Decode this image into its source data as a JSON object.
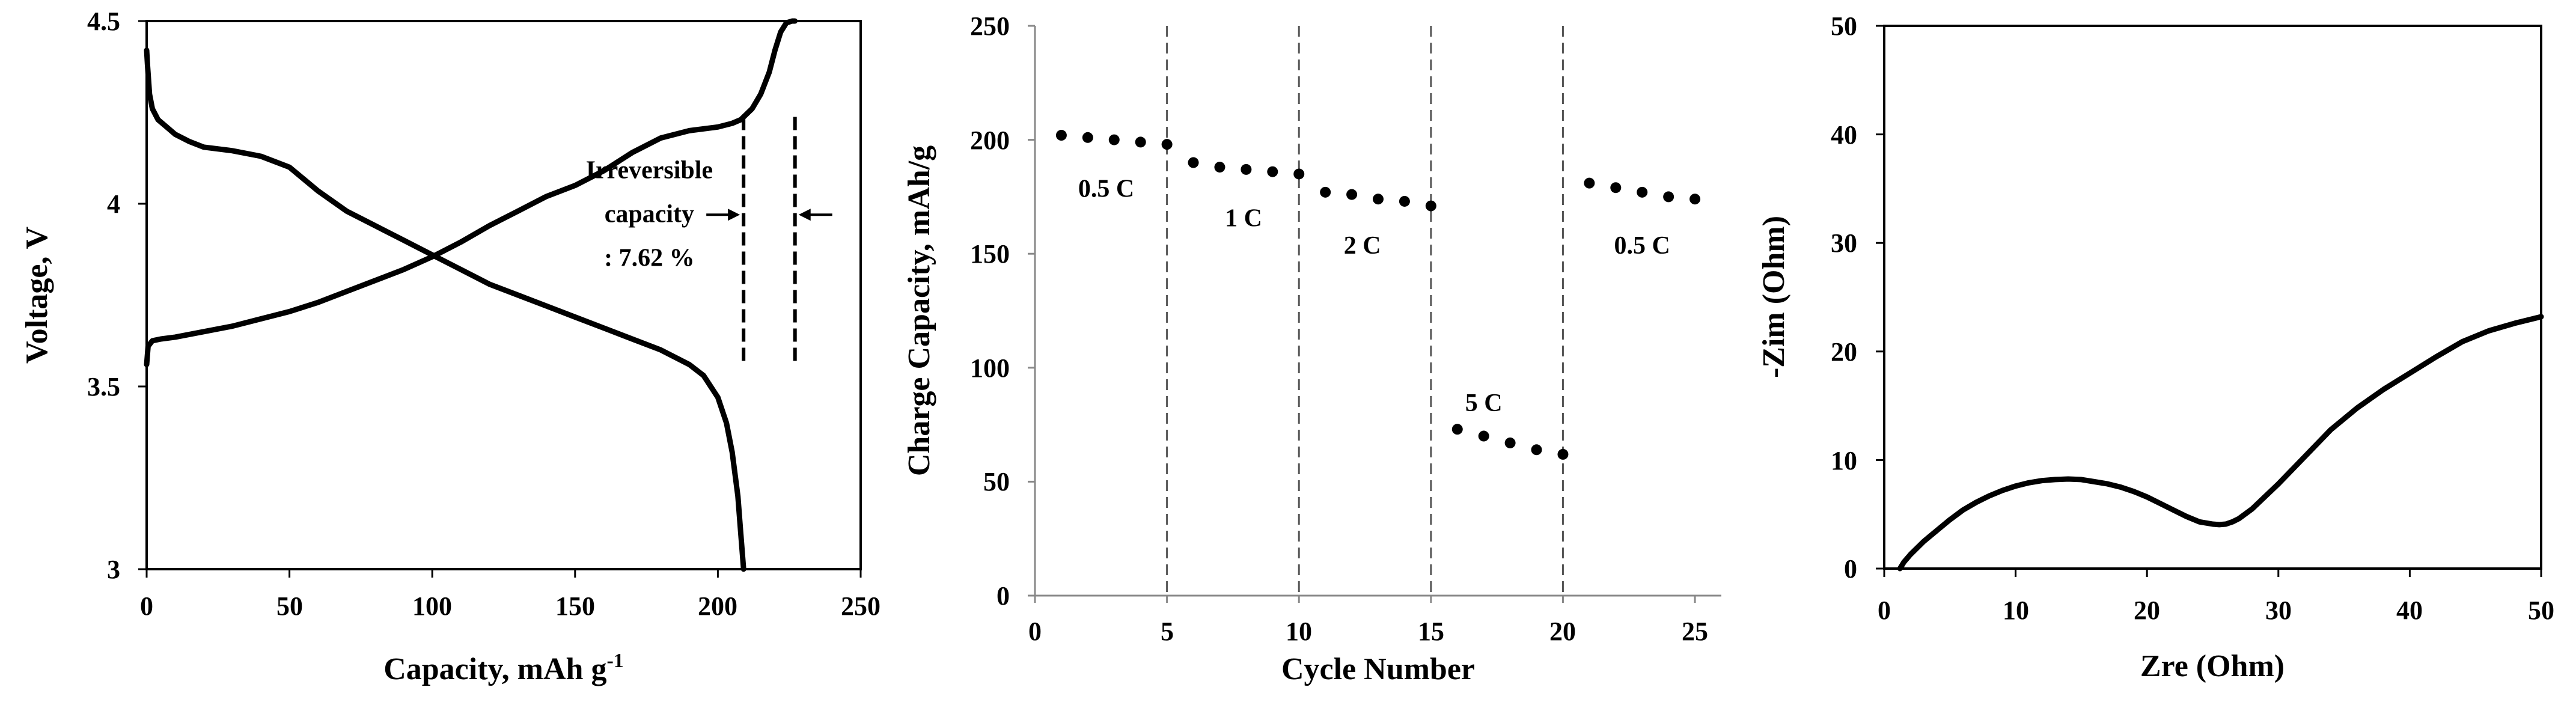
{
  "chart_data": [
    {
      "type": "line",
      "xlabel": "Capacity, mAh g",
      "xlabel_sup": "-1",
      "ylabel": "Voltage, V",
      "xlim": [
        0,
        250
      ],
      "ylim": [
        3,
        4.5
      ],
      "xticks": [
        "0",
        "50",
        "100",
        "150",
        "200",
        "250"
      ],
      "yticks": [
        "3",
        "3.5",
        "4",
        "4.5"
      ],
      "grid": false,
      "series": [
        {
          "x": [
            0,
            0.3,
            1,
            2,
            4,
            7,
            10,
            15,
            20,
            30,
            40,
            50,
            60,
            70,
            80,
            90,
            100,
            110,
            120,
            130,
            140,
            150,
            160,
            170,
            180,
            190,
            195,
            200,
            203,
            205,
            207,
            208,
            209
          ],
          "y": [
            4.42,
            4.38,
            4.3,
            4.26,
            4.23,
            4.21,
            4.19,
            4.17,
            4.155,
            4.145,
            4.13,
            4.1,
            4.035,
            3.98,
            3.94,
            3.9,
            3.86,
            3.82,
            3.78,
            3.75,
            3.72,
            3.69,
            3.66,
            3.63,
            3.6,
            3.56,
            3.53,
            3.47,
            3.4,
            3.32,
            3.2,
            3.1,
            3.0
          ]
        },
        {
          "x": [
            0,
            0.5,
            2,
            5,
            10,
            20,
            30,
            40,
            50,
            60,
            70,
            80,
            90,
            100,
            110,
            120,
            130,
            140,
            150,
            160,
            170,
            180,
            190,
            200,
            205,
            208,
            212,
            215,
            218,
            220,
            222,
            224,
            226,
            227
          ],
          "y": [
            3.56,
            3.61,
            3.625,
            3.63,
            3.635,
            3.65,
            3.665,
            3.685,
            3.705,
            3.73,
            3.76,
            3.79,
            3.82,
            3.855,
            3.895,
            3.94,
            3.98,
            4.02,
            4.05,
            4.09,
            4.14,
            4.18,
            4.2,
            4.21,
            4.22,
            4.23,
            4.26,
            4.3,
            4.36,
            4.42,
            4.47,
            4.495,
            4.5,
            4.5
          ]
        }
      ],
      "annotations": [
        {
          "text": "Irreversible",
          "x": 176,
          "y": 4.07
        },
        {
          "text": "capacity",
          "x": 176,
          "y": 3.95
        },
        {
          "text": ": 7.62 %",
          "x": 176,
          "y": 3.83
        }
      ],
      "markers": {
        "dashed_x": [
          209,
          227
        ],
        "y_range": [
          3.57,
          4.25
        ],
        "arrow_y": 3.97
      }
    },
    {
      "type": "scatter",
      "xlabel": "Cycle Number",
      "ylabel": "Charge Capacity, mAh/g",
      "xlim": [
        0,
        26
      ],
      "ylim": [
        0,
        250
      ],
      "xticks": [
        "0",
        "5",
        "10",
        "15",
        "20",
        "25"
      ],
      "yticks": [
        "0",
        "50",
        "100",
        "150",
        "200",
        "250"
      ],
      "grid": false,
      "x": [
        1,
        2,
        3,
        4,
        5,
        6,
        7,
        8,
        9,
        10,
        11,
        12,
        13,
        14,
        15,
        16,
        17,
        18,
        19,
        20,
        21,
        22,
        23,
        24,
        25
      ],
      "y": [
        202,
        201,
        200,
        199,
        198,
        190,
        188,
        187,
        186,
        185,
        177,
        176,
        174,
        173,
        171,
        73,
        70,
        67,
        64,
        62,
        181,
        179,
        177,
        175,
        174
      ],
      "dividers": [
        5,
        10,
        15,
        20
      ],
      "annotations": [
        {
          "text": "0.5 C",
          "x": 2.7,
          "y": 175
        },
        {
          "text": "1 C",
          "x": 7.9,
          "y": 162
        },
        {
          "text": "2 C",
          "x": 12.4,
          "y": 150
        },
        {
          "text": "5 C",
          "x": 17.0,
          "y": 81
        },
        {
          "text": "0.5 C",
          "x": 23.0,
          "y": 150
        }
      ]
    },
    {
      "type": "line",
      "xlabel": "Zre (Ohm)",
      "ylabel": "-Zim (Ohm)",
      "xlim": [
        0,
        50
      ],
      "ylim": [
        0,
        50
      ],
      "xticks": [
        "0",
        "10",
        "20",
        "30",
        "40",
        "50"
      ],
      "yticks": [
        "0",
        "10",
        "20",
        "30",
        "40",
        "50"
      ],
      "grid": false,
      "x": [
        1.2,
        1.5,
        2,
        3,
        4,
        5,
        6,
        7,
        8,
        9,
        10,
        11,
        12,
        13,
        14,
        15,
        16,
        17,
        18,
        19,
        20,
        21,
        22,
        23,
        24,
        25,
        25.5,
        26,
        26.5,
        27,
        28,
        30,
        32,
        34,
        36,
        38,
        40,
        42,
        44,
        46,
        48,
        50
      ],
      "y": [
        0,
        0.6,
        1.3,
        2.5,
        3.5,
        4.5,
        5.4,
        6.1,
        6.7,
        7.2,
        7.6,
        7.9,
        8.1,
        8.2,
        8.25,
        8.2,
        8.0,
        7.8,
        7.5,
        7.1,
        6.6,
        6.0,
        5.4,
        4.8,
        4.3,
        4.1,
        4.05,
        4.1,
        4.3,
        4.6,
        5.5,
        7.8,
        10.3,
        12.8,
        14.8,
        16.5,
        18.0,
        19.5,
        20.9,
        21.9,
        22.6,
        23.2
      ]
    }
  ]
}
